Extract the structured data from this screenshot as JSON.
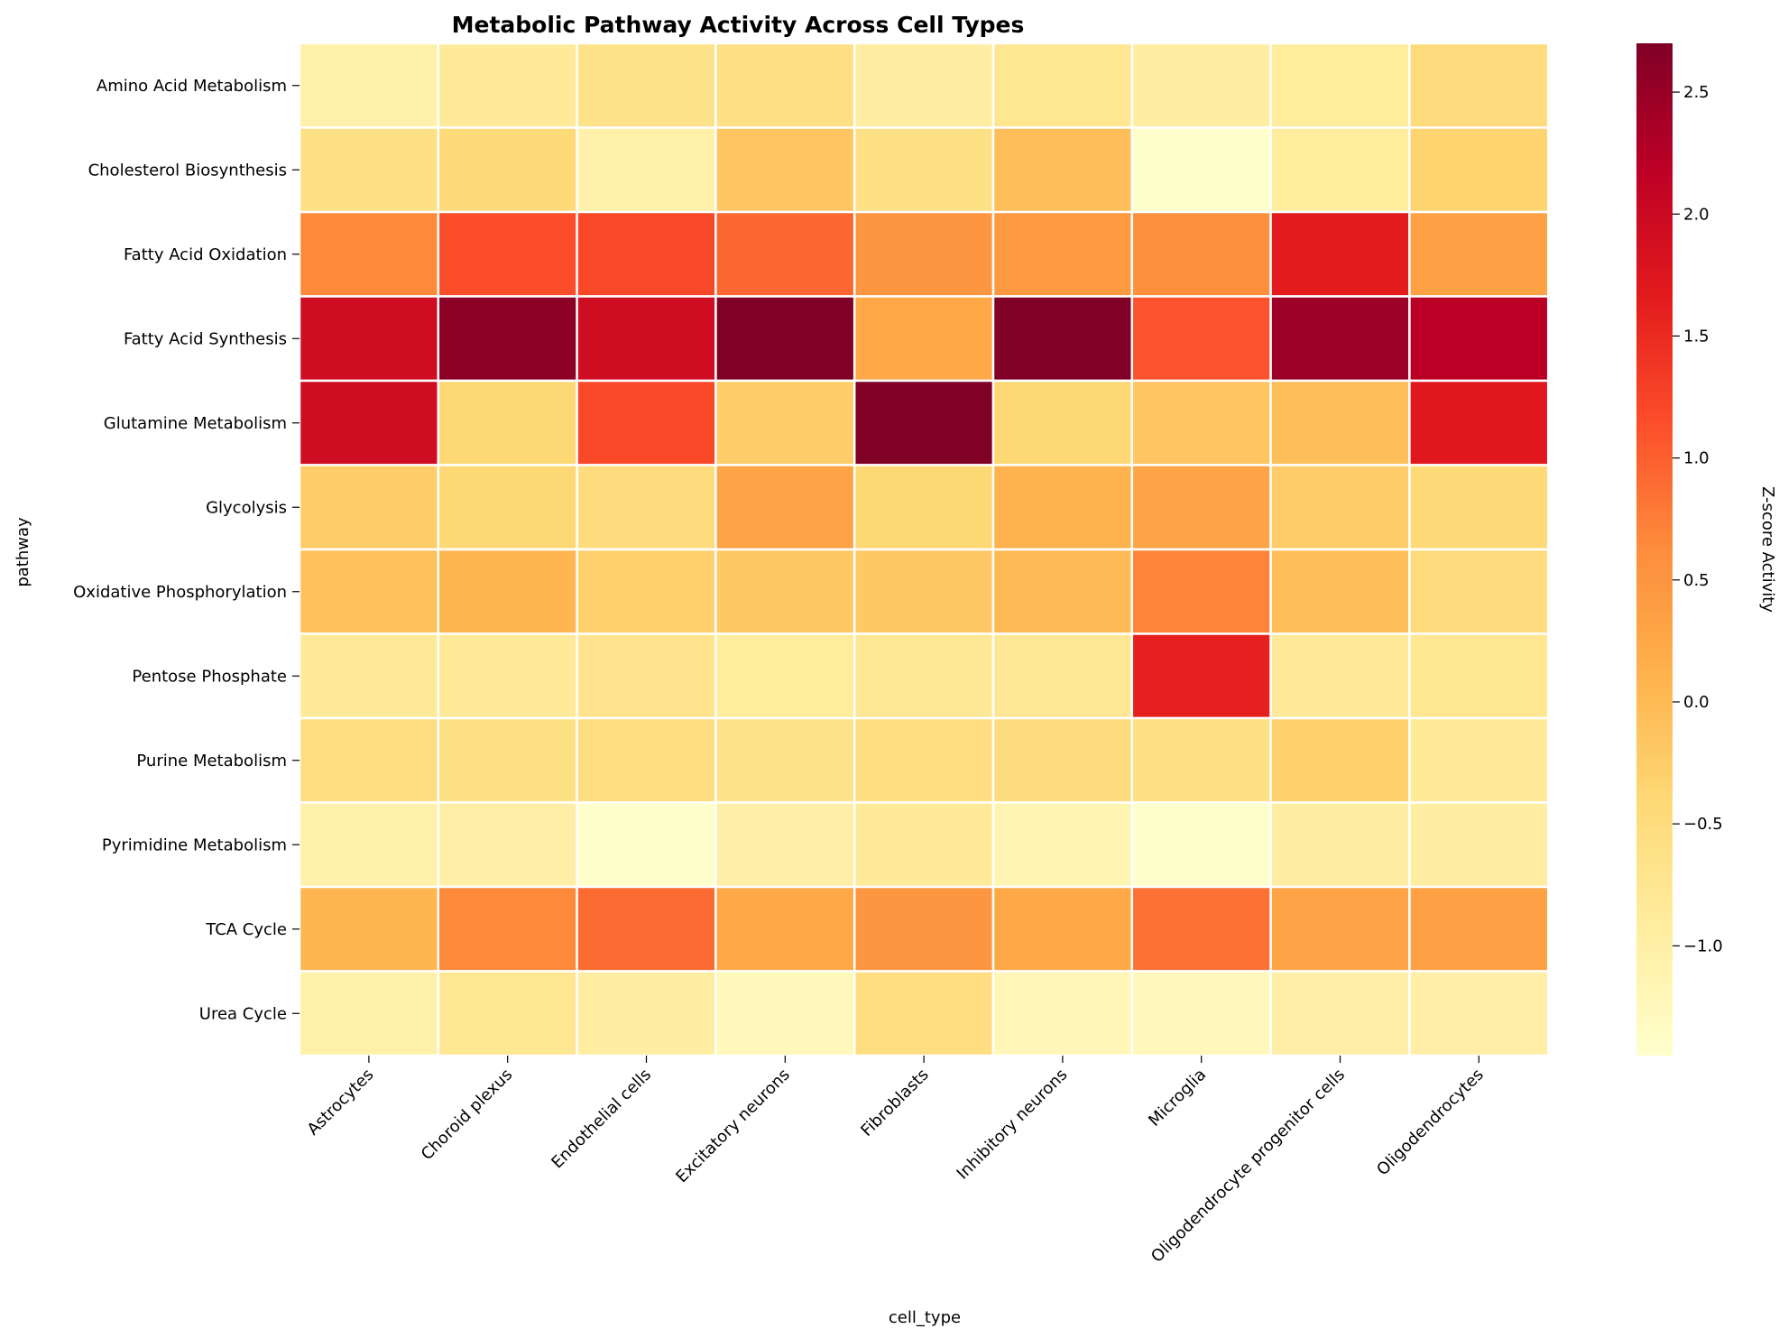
{
  "chart_data": {
    "type": "heatmap",
    "title": "Metabolic Pathway Activity Across Cell Types",
    "xlabel": "cell_type",
    "ylabel": "pathway",
    "colorbar_label": "Z-score Activity",
    "colormap": "YlOrRd",
    "colorbar_range": [
      -1.45,
      2.7
    ],
    "colorbar_ticks": [
      {
        "value": 2.5,
        "label": "2.5"
      },
      {
        "value": 2.0,
        "label": "2.0"
      },
      {
        "value": 1.5,
        "label": "1.5"
      },
      {
        "value": 1.0,
        "label": "1.0"
      },
      {
        "value": 0.5,
        "label": "0.5"
      },
      {
        "value": 0.0,
        "label": "0.0"
      },
      {
        "value": -0.5,
        "label": "−0.5"
      },
      {
        "value": -1.0,
        "label": "−1.0"
      }
    ],
    "x_categories": [
      "Astrocytes",
      "Choroid plexus",
      "Endothelial cells",
      "Excitatory neurons",
      "Fibroblasts",
      "Inhibitory neurons",
      "Microglia",
      "Oligodendrocyte progenitor cells",
      "Oligodendrocytes"
    ],
    "y_categories": [
      "Amino Acid Metabolism",
      "Cholesterol Biosynthesis",
      "Fatty Acid Oxidation",
      "Fatty Acid Synthesis",
      "Glutamine Metabolism",
      "Glycolysis",
      "Oxidative Phosphorylation",
      "Pentose Phosphate",
      "Purine Metabolism",
      "Pyrimidine Metabolism",
      "TCA Cycle",
      "Urea Cycle"
    ],
    "values": [
      [
        -1.05,
        -0.85,
        -0.65,
        -0.6,
        -0.95,
        -0.75,
        -0.95,
        -0.9,
        -0.5
      ],
      [
        -0.6,
        -0.45,
        -1.05,
        -0.15,
        -0.6,
        -0.05,
        -1.45,
        -0.9,
        -0.35
      ],
      [
        0.65,
        1.15,
        1.2,
        0.95,
        0.5,
        0.45,
        0.6,
        1.65,
        0.35
      ],
      [
        1.95,
        2.6,
        1.95,
        2.7,
        0.25,
        2.7,
        1.1,
        2.45,
        2.2
      ],
      [
        1.95,
        -0.4,
        1.2,
        -0.25,
        2.7,
        -0.4,
        -0.15,
        -0.05,
        1.7
      ],
      [
        -0.25,
        -0.4,
        -0.5,
        0.3,
        -0.4,
        0.1,
        0.3,
        -0.25,
        -0.45
      ],
      [
        -0.1,
        0.05,
        -0.3,
        -0.2,
        -0.2,
        0.0,
        0.7,
        -0.05,
        -0.5
      ],
      [
        -0.85,
        -0.85,
        -0.7,
        -0.9,
        -0.8,
        -0.8,
        1.6,
        -0.85,
        -0.75
      ],
      [
        -0.55,
        -0.6,
        -0.55,
        -0.65,
        -0.55,
        -0.5,
        -0.6,
        -0.3,
        -0.85
      ],
      [
        -1.05,
        -1.0,
        -1.45,
        -1.0,
        -0.85,
        -1.15,
        -1.45,
        -0.95,
        -0.95
      ],
      [
        0.05,
        0.65,
        0.9,
        0.25,
        0.5,
        0.25,
        0.85,
        0.3,
        0.35
      ],
      [
        -1.05,
        -0.75,
        -0.95,
        -1.25,
        -0.55,
        -1.2,
        -1.25,
        -1.0,
        -1.0
      ]
    ]
  }
}
